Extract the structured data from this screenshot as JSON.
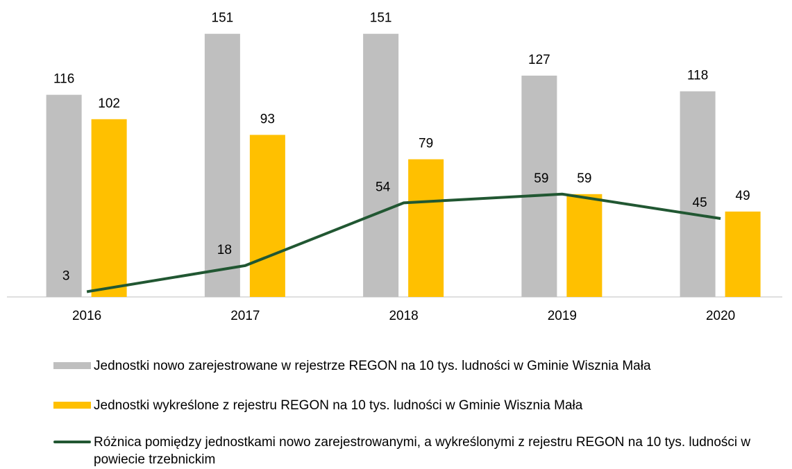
{
  "chart_data": {
    "type": "bar-line",
    "categories": [
      "2016",
      "2017",
      "2018",
      "2019",
      "2020"
    ],
    "series": [
      {
        "name": "Jednostki nowo zarejestrowane w rejestrze REGON na 10 tys. ludności w Gminie Wisznia Mała",
        "color": "#bfbfbf",
        "type": "bar",
        "values": [
          116,
          151,
          151,
          127,
          118
        ]
      },
      {
        "name": "Jednostki wykreślone z rejestru REGON na 10 tys. ludności w Gminie Wisznia Mała",
        "color": "#ffc000",
        "type": "bar",
        "values": [
          102,
          93,
          79,
          59,
          49
        ]
      },
      {
        "name": "Różnica pomiędzy jednostkami nowo zarejestrowanymi, a wykreślonymi z rejestru REGON na 10 tys. ludności w powiecie trzebnickim",
        "color": "#215732",
        "type": "line",
        "values": [
          3,
          18,
          54,
          59,
          45
        ]
      }
    ],
    "ylim": [
      0,
      170
    ]
  }
}
